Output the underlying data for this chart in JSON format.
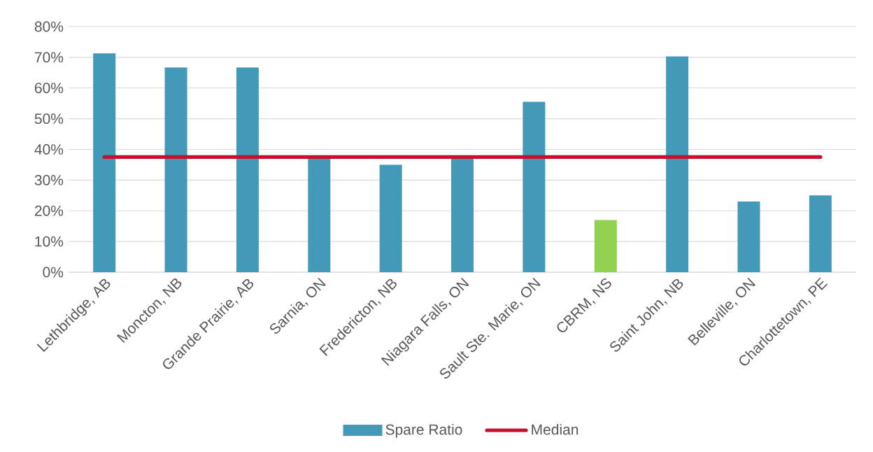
{
  "chart_data": {
    "type": "bar",
    "categories": [
      "Lethbridge, AB",
      "Moncton, NB",
      "Grande Prairie, AB",
      "Sarnia, ON",
      "Fredericton, NB",
      "Niagara Falls, ON",
      "Sault Ste. Marie, ON",
      "CBRM, NS",
      "Saint John, NB",
      "Belleville, ON",
      "Charlottetown, PE"
    ],
    "series": [
      {
        "name": "Spare Ratio",
        "color": "#4399b8",
        "colors": [
          "#4399b8",
          "#4399b8",
          "#4399b8",
          "#4399b8",
          "#4399b8",
          "#4399b8",
          "#4399b8",
          "#92d050",
          "#4399b8",
          "#4399b8",
          "#4399b8"
        ],
        "values": [
          71.3,
          66.7,
          66.7,
          37.5,
          35,
          37.5,
          55.5,
          17,
          70.3,
          23,
          25
        ]
      },
      {
        "name": "Median",
        "type": "line",
        "color": "#c8102e",
        "values": [
          37.5,
          37.5,
          37.5,
          37.5,
          37.5,
          37.5,
          37.5,
          37.5,
          37.5,
          37.5,
          37.5
        ]
      }
    ],
    "ylim": [
      0,
      80
    ],
    "yticks": [
      {
        "value": 0,
        "label": "0%"
      },
      {
        "value": 10,
        "label": "10%"
      },
      {
        "value": 20,
        "label": "20%"
      },
      {
        "value": 30,
        "label": "30%"
      },
      {
        "value": 40,
        "label": "40%"
      },
      {
        "value": 50,
        "label": "50%"
      },
      {
        "value": 60,
        "label": "60%"
      },
      {
        "value": 70,
        "label": "70%"
      },
      {
        "value": 80,
        "label": "80%"
      }
    ],
    "grid": "y",
    "legend": "bottom"
  }
}
